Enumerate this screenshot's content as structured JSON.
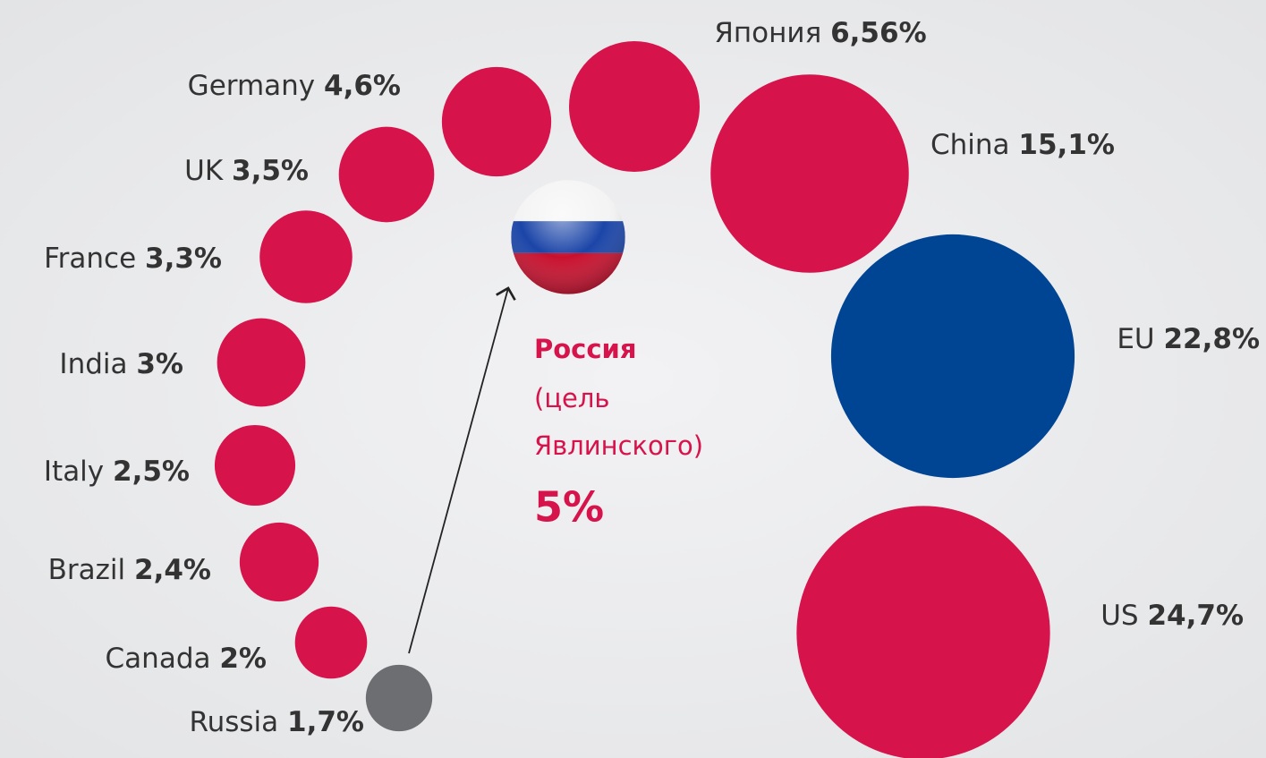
{
  "chart_data": {
    "type": "bubble",
    "categories": [
      "US",
      "EU",
      "China",
      "Япония",
      "Germany",
      "UK",
      "France",
      "India",
      "Italy",
      "Brazil",
      "Canada",
      "Russia"
    ],
    "values": [
      24.7,
      22.8,
      15.1,
      6.56,
      4.6,
      3.5,
      3.3,
      3,
      2.5,
      2.4,
      2,
      1.7
    ],
    "value_labels": [
      "24,7%",
      "22,8%",
      "15,1%",
      "6,56%",
      "4,6%",
      "3,5%",
      "3,3%",
      "3%",
      "2,5%",
      "2,4%",
      "2%",
      "1,7%"
    ],
    "colors": [
      "#d6134b",
      "#004494",
      "#d6134b",
      "#d6134b",
      "#d6134b",
      "#d6134b",
      "#d6134b",
      "#d6134b",
      "#d6134b",
      "#d6134b",
      "#d6134b",
      "#6d6e71"
    ],
    "annotation": {
      "title": "Россия",
      "lines": [
        "(цель",
        "Явлинского)"
      ],
      "value": 5,
      "value_label": "5%"
    }
  }
}
